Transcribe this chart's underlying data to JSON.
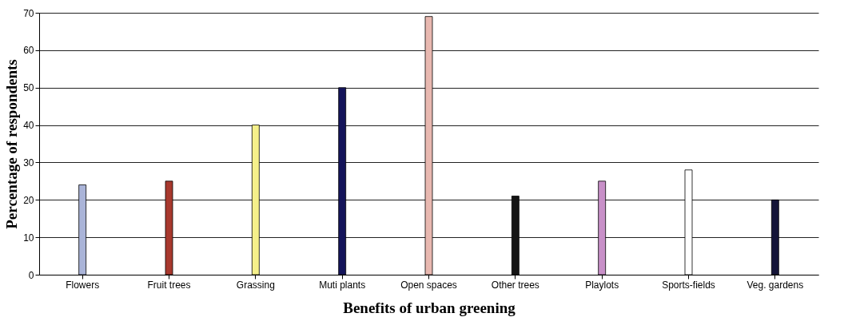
{
  "chart_data": {
    "type": "bar",
    "xlabel": "Benefits of urban greening",
    "ylabel": "Percentage of respondents",
    "categories": [
      "Flowers",
      "Fruit trees",
      "Grassing",
      "Muti plants",
      "Open spaces",
      "Other trees",
      "Playlots",
      "Sports-fields",
      "Veg. gardens"
    ],
    "values": [
      24,
      25,
      40,
      50,
      69,
      21,
      25,
      28,
      20
    ],
    "colors": [
      "#aab4d8",
      "#a8392e",
      "#f5f08a",
      "#14145a",
      "#e8b8b0",
      "#151515",
      "#c890c8",
      "#ffffff",
      "#141438"
    ],
    "ylim": [
      0,
      70
    ],
    "yticks": [
      0,
      10,
      20,
      30,
      40,
      50,
      60,
      70
    ],
    "grid": "y"
  }
}
